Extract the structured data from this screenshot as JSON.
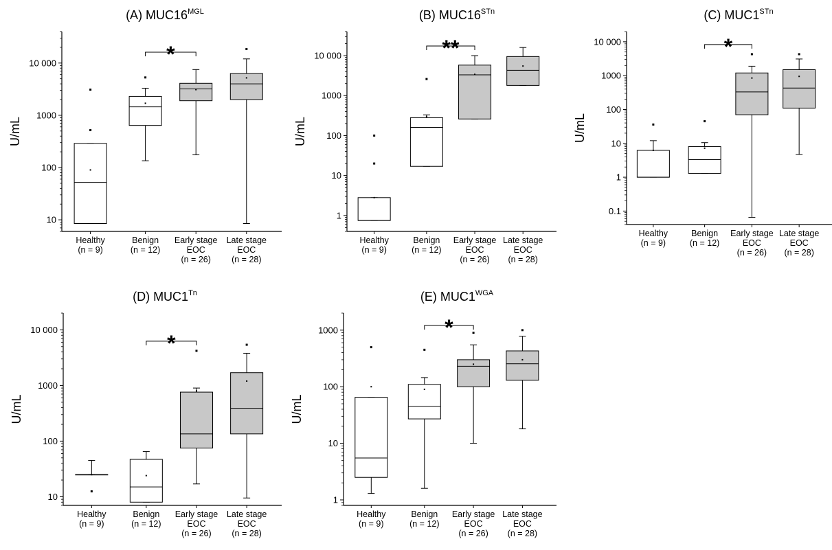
{
  "colors": {
    "box_fill_control": "#ffffff",
    "box_fill_eoc": "#c8c8c8",
    "line": "#000000",
    "background": "#ffffff"
  },
  "chart_data": [
    {
      "type": "box",
      "panel": "(A)",
      "title": {
        "prefix": "(A)  MUC16",
        "superscript": "MGL"
      },
      "ylabel": "U/mL",
      "yscale": "log",
      "ylim": [
        6,
        40000
      ],
      "yticks": [
        10,
        100,
        1000,
        10000
      ],
      "ytick_labels": [
        "10",
        "100",
        "1000",
        "10 000"
      ],
      "categories": [
        [
          "Healthy",
          "(n = 9)"
        ],
        [
          "Benign",
          "(n = 12)"
        ],
        [
          "Early stage",
          "EOC",
          "(n = 26)"
        ],
        [
          "Late stage",
          "EOC",
          "(n = 28)"
        ]
      ],
      "boxes": [
        {
          "min": 8.5,
          "q1": 8.5,
          "median": 52,
          "q3": 290,
          "max": 290,
          "mean": 90,
          "outliers": [
            3100,
            520
          ],
          "fill": "control"
        },
        {
          "min": 135,
          "q1": 640,
          "median": 1450,
          "q3": 2300,
          "max": 3300,
          "mean": 1700,
          "outliers": [
            5300
          ],
          "fill": "control"
        },
        {
          "min": 175,
          "q1": 1900,
          "median": 3200,
          "q3": 4100,
          "max": 7500,
          "mean": 3100,
          "outliers": [],
          "fill": "eoc"
        },
        {
          "min": 8.5,
          "q1": 2000,
          "median": 4000,
          "q3": 6300,
          "max": 12000,
          "mean": 5200,
          "outliers": [
            18500
          ],
          "fill": "eoc"
        }
      ],
      "significance": [
        {
          "from": 1,
          "to": 2,
          "label": "*"
        }
      ]
    },
    {
      "type": "box",
      "panel": "(B)",
      "title": {
        "prefix": "(B)  MUC16",
        "superscript": "STn"
      },
      "ylabel": "U/mL",
      "yscale": "log",
      "ylim": [
        0.4,
        40000
      ],
      "yticks": [
        1,
        10,
        100,
        1000,
        10000
      ],
      "ytick_labels": [
        "1",
        "10",
        "100",
        "1000",
        "10 000"
      ],
      "categories": [
        [
          "Healthy",
          "(n = 9)"
        ],
        [
          "Benign",
          "(n = 12)"
        ],
        [
          "Early stage",
          "EOC",
          "(n = 26)"
        ],
        [
          "Late stage",
          "EOC",
          "(n = 28)"
        ]
      ],
      "boxes": [
        {
          "min": 0.75,
          "q1": 0.75,
          "median": 0.75,
          "q3": 2.8,
          "max": 2.8,
          "mean": 2.8,
          "outliers": [
            100,
            20
          ],
          "fill": "control"
        },
        {
          "min": 17,
          "q1": 17,
          "median": 160,
          "q3": 280,
          "max": 330,
          "mean": 300,
          "outliers": [
            2600
          ],
          "fill": "control"
        },
        {
          "min": 260,
          "q1": 260,
          "median": 3300,
          "q3": 5800,
          "max": 10000,
          "mean": 3400,
          "outliers": [],
          "fill": "eoc"
        },
        {
          "min": 1800,
          "q1": 1800,
          "median": 4300,
          "q3": 9500,
          "max": 16000,
          "mean": 5500,
          "outliers": [],
          "fill": "eoc"
        }
      ],
      "significance": [
        {
          "from": 1,
          "to": 2,
          "label": "**"
        }
      ]
    },
    {
      "type": "box",
      "panel": "(C)",
      "title": {
        "prefix": "(C)  MUC1",
        "superscript": "STn"
      },
      "ylabel": "U/mL",
      "yscale": "log",
      "ylim": [
        0.04,
        20000
      ],
      "yticks": [
        0.1,
        1,
        10,
        100,
        1000,
        10000
      ],
      "ytick_labels": [
        "0.1",
        "1",
        "10",
        "100",
        "1000",
        "10 000"
      ],
      "categories": [
        [
          "Healthy",
          "(n = 9)"
        ],
        [
          "Benign",
          "(n = 12)"
        ],
        [
          "Early stage",
          "EOC",
          "(n = 26)"
        ],
        [
          "Late stage",
          "EOC",
          "(n = 28)"
        ]
      ],
      "boxes": [
        {
          "min": 1.0,
          "q1": 1.0,
          "median": 1.0,
          "q3": 6.2,
          "max": 12,
          "mean": 6.2,
          "outliers": [
            36
          ],
          "fill": "control"
        },
        {
          "min": 1.3,
          "q1": 1.3,
          "median": 3.3,
          "q3": 8.0,
          "max": 10.5,
          "mean": 7.2,
          "outliers": [
            45
          ],
          "fill": "control"
        },
        {
          "min": 0.065,
          "q1": 70,
          "median": 330,
          "q3": 1200,
          "max": 1900,
          "mean": 850,
          "outliers": [
            4300
          ],
          "fill": "eoc"
        },
        {
          "min": 4.7,
          "q1": 110,
          "median": 430,
          "q3": 1500,
          "max": 3100,
          "mean": 950,
          "outliers": [
            4300
          ],
          "fill": "eoc"
        }
      ],
      "significance": [
        {
          "from": 1,
          "to": 2,
          "label": "*"
        }
      ]
    },
    {
      "type": "box",
      "panel": "(D)",
      "title": {
        "prefix": "(D)  MUC1",
        "superscript": "Tn"
      },
      "ylabel": "U/mL",
      "yscale": "log",
      "ylim": [
        7,
        20000
      ],
      "yticks": [
        10,
        100,
        1000,
        10000
      ],
      "ytick_labels": [
        "10",
        "100",
        "1000",
        "10 000"
      ],
      "categories": [
        [
          "Healthy",
          "(n = 9)"
        ],
        [
          "Benign",
          "(n = 12)"
        ],
        [
          "Early stage",
          "EOC",
          "(n = 26)"
        ],
        [
          "Late stage",
          "EOC",
          "(n = 28)"
        ]
      ],
      "boxes": [
        {
          "min": 25,
          "q1": 25,
          "median": 25,
          "q3": 25,
          "max": 45,
          "mean": 25,
          "outliers": [
            12.5
          ],
          "fill": "control"
        },
        {
          "min": 8,
          "q1": 8,
          "median": 15,
          "q3": 47,
          "max": 65,
          "mean": 24,
          "outliers": [],
          "fill": "control"
        },
        {
          "min": 17,
          "q1": 75,
          "median": 135,
          "q3": 760,
          "max": 900,
          "mean": 800,
          "outliers": [
            4200
          ],
          "fill": "eoc"
        },
        {
          "min": 9.5,
          "q1": 135,
          "median": 390,
          "q3": 1700,
          "max": 3800,
          "mean": 1200,
          "outliers": [
            5400
          ],
          "fill": "eoc"
        }
      ],
      "significance": [
        {
          "from": 1,
          "to": 2,
          "label": "*"
        }
      ]
    },
    {
      "type": "box",
      "panel": "(E)",
      "title": {
        "prefix": "(E)  MUC1",
        "superscript": "WGA"
      },
      "ylabel": "U/mL",
      "yscale": "log",
      "ylim": [
        0.8,
        2000
      ],
      "yticks": [
        1,
        10,
        100,
        1000
      ],
      "ytick_labels": [
        "1",
        "10",
        "100",
        "1000"
      ],
      "categories": [
        [
          "Healthy",
          "(n = 9)"
        ],
        [
          "Benign",
          "(n = 12)"
        ],
        [
          "Early stage",
          "EOC",
          "(n = 26)"
        ],
        [
          "Late stage",
          "EOC",
          "(n = 28)"
        ]
      ],
      "boxes": [
        {
          "min": 1.3,
          "q1": 2.5,
          "median": 5.5,
          "q3": 65,
          "max": 65,
          "mean": 100,
          "outliers": [
            500
          ],
          "fill": "control"
        },
        {
          "min": 1.6,
          "q1": 27,
          "median": 45,
          "q3": 110,
          "max": 145,
          "mean": 90,
          "outliers": [
            450
          ],
          "fill": "control"
        },
        {
          "min": 10,
          "q1": 100,
          "median": 230,
          "q3": 300,
          "max": 550,
          "mean": 250,
          "outliers": [
            900
          ],
          "fill": "eoc"
        },
        {
          "min": 18,
          "q1": 130,
          "median": 255,
          "q3": 430,
          "max": 780,
          "mean": 300,
          "outliers": [
            1000
          ],
          "fill": "eoc"
        }
      ],
      "significance": [
        {
          "from": 1,
          "to": 2,
          "label": "*"
        }
      ]
    }
  ]
}
